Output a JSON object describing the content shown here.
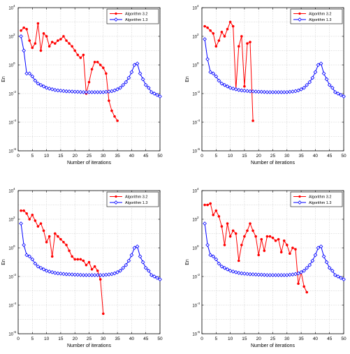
{
  "figure": {
    "xlabel": "Number of iterations",
    "ylabel": "En"
  },
  "legend_labels": [
    "Algorithm 3.2",
    "Algorithm 1.3"
  ],
  "colors": {
    "alg32": "#ff0000",
    "alg13": "#0000ff",
    "grid": "#b8b8b8",
    "axes": "#000000"
  },
  "chart_data": [
    {
      "type": "line",
      "xlabel": "Number of iterations",
      "ylabel": "En",
      "xlim": [
        0,
        50
      ],
      "ylim_log10": [
        -6,
        4
      ],
      "yscale": "log",
      "grid": true,
      "legend": "top-right",
      "x_ticks": [
        0,
        5,
        10,
        15,
        20,
        25,
        30,
        35,
        40,
        45,
        50
      ],
      "y_tick_exponents": [
        -6,
        -4,
        -2,
        0,
        2,
        4
      ],
      "series": [
        {
          "name": "Algorithm 3.2",
          "marker": "circle",
          "x": [
            1,
            2,
            3,
            4,
            5,
            6,
            7,
            8,
            9,
            10,
            11,
            12,
            13,
            14,
            15,
            16,
            17,
            18,
            19,
            20,
            21,
            22,
            23,
            24,
            25,
            26,
            27,
            28,
            29,
            30,
            31,
            32,
            33,
            34,
            35
          ],
          "log10_y": [
            2.4,
            2.6,
            2.5,
            1.7,
            1.2,
            1.5,
            2.9,
            1.0,
            2.2,
            2.0,
            1.3,
            1.6,
            1.5,
            1.7,
            1.8,
            2.0,
            1.7,
            1.5,
            1.3,
            1.0,
            0.7,
            0.5,
            0.7,
            -2.0,
            -1.2,
            -0.3,
            0.2,
            0.2,
            0.0,
            -0.2,
            -0.6,
            -2.5,
            -3.2,
            -3.6,
            -3.9
          ]
        },
        {
          "name": "Algorithm 1.3",
          "marker": "diamond",
          "x": [
            1,
            2,
            3,
            4,
            5,
            6,
            7,
            8,
            9,
            10,
            11,
            12,
            13,
            14,
            15,
            16,
            17,
            18,
            19,
            20,
            21,
            22,
            23,
            24,
            25,
            26,
            27,
            28,
            29,
            30,
            31,
            32,
            33,
            34,
            35,
            36,
            37,
            38,
            39,
            40,
            41,
            42,
            43,
            44,
            45,
            46,
            47,
            48,
            49,
            50
          ],
          "log10_y": [
            2.0,
            1.0,
            -0.6,
            -0.6,
            -0.8,
            -1.1,
            -1.3,
            -1.4,
            -1.5,
            -1.6,
            -1.65,
            -1.7,
            -1.75,
            -1.78,
            -1.8,
            -1.82,
            -1.84,
            -1.85,
            -1.86,
            -1.87,
            -1.88,
            -1.89,
            -1.9,
            -1.9,
            -1.9,
            -1.9,
            -1.9,
            -1.9,
            -1.9,
            -1.9,
            -1.88,
            -1.86,
            -1.83,
            -1.78,
            -1.7,
            -1.6,
            -1.4,
            -1.2,
            -0.9,
            -0.5,
            0.0,
            0.1,
            -0.6,
            -1.0,
            -1.4,
            -1.6,
            -1.9,
            -2.0,
            -2.1,
            -2.2
          ]
        }
      ]
    },
    {
      "type": "line",
      "xlabel": "Number of iterations",
      "ylabel": "En",
      "xlim": [
        0,
        50
      ],
      "ylim_log10": [
        -6,
        4
      ],
      "yscale": "log",
      "grid": true,
      "legend": "top-right",
      "x_ticks": [
        0,
        5,
        10,
        15,
        20,
        25,
        30,
        35,
        40,
        45,
        50
      ],
      "y_tick_exponents": [
        -6,
        -4,
        -2,
        0,
        2,
        4
      ],
      "series": [
        {
          "name": "Algorithm 3.2",
          "marker": "circle",
          "x": [
            1,
            2,
            3,
            4,
            5,
            6,
            7,
            8,
            9,
            10,
            11,
            12,
            13,
            14,
            15,
            16,
            17,
            18
          ],
          "log10_y": [
            2.7,
            2.6,
            2.4,
            2.2,
            1.3,
            1.7,
            2.3,
            2.0,
            2.5,
            3.0,
            2.7,
            -1.7,
            1.3,
            2.0,
            -1.5,
            1.5,
            1.6,
            -3.9
          ]
        },
        {
          "name": "Algorithm 1.3",
          "marker": "diamond",
          "x": [
            1,
            2,
            3,
            4,
            5,
            6,
            7,
            8,
            9,
            10,
            11,
            12,
            13,
            14,
            15,
            16,
            17,
            18,
            19,
            20,
            21,
            22,
            23,
            24,
            25,
            26,
            27,
            28,
            29,
            30,
            31,
            32,
            33,
            34,
            35,
            36,
            37,
            38,
            39,
            40,
            41,
            42,
            43,
            44,
            45,
            46,
            47,
            48,
            49,
            50
          ],
          "log10_y": [
            1.8,
            0.4,
            -0.5,
            -0.6,
            -0.8,
            -1.1,
            -1.3,
            -1.4,
            -1.5,
            -1.6,
            -1.65,
            -1.7,
            -1.75,
            -1.78,
            -1.8,
            -1.82,
            -1.84,
            -1.85,
            -1.86,
            -1.87,
            -1.88,
            -1.89,
            -1.9,
            -1.9,
            -1.9,
            -1.9,
            -1.9,
            -1.9,
            -1.9,
            -1.9,
            -1.88,
            -1.86,
            -1.83,
            -1.78,
            -1.7,
            -1.6,
            -1.4,
            -1.2,
            -0.9,
            -0.5,
            0.0,
            0.1,
            -0.6,
            -1.0,
            -1.4,
            -1.6,
            -1.9,
            -2.0,
            -2.1,
            -2.2
          ]
        }
      ]
    },
    {
      "type": "line",
      "xlabel": "Number of iterations",
      "ylabel": "En",
      "xlim": [
        0,
        50
      ],
      "ylim_log10": [
        -6,
        4
      ],
      "yscale": "log",
      "grid": true,
      "legend": "top-right",
      "x_ticks": [
        0,
        5,
        10,
        15,
        20,
        25,
        30,
        35,
        40,
        45,
        50
      ],
      "y_tick_exponents": [
        -6,
        -4,
        -2,
        0,
        2,
        4
      ],
      "series": [
        {
          "name": "Algorithm 3.2",
          "marker": "circle",
          "x": [
            1,
            2,
            3,
            4,
            5,
            6,
            7,
            8,
            9,
            10,
            11,
            12,
            13,
            14,
            15,
            16,
            17,
            18,
            19,
            20,
            21,
            22,
            23,
            24,
            25,
            26,
            27,
            28,
            29,
            30
          ],
          "log10_y": [
            2.6,
            2.6,
            2.4,
            2.0,
            2.3,
            1.9,
            1.5,
            1.7,
            1.2,
            0.4,
            0.8,
            -0.6,
            1.0,
            0.8,
            0.6,
            0.4,
            0.2,
            -0.2,
            -0.6,
            -0.8,
            -0.8,
            -0.8,
            -0.9,
            -1.2,
            -1.0,
            -1.5,
            -1.3,
            -1.6,
            -2.2,
            -4.6
          ]
        },
        {
          "name": "Algorithm 1.3",
          "marker": "diamond",
          "x": [
            1,
            2,
            3,
            4,
            5,
            6,
            7,
            8,
            9,
            10,
            11,
            12,
            13,
            14,
            15,
            16,
            17,
            18,
            19,
            20,
            21,
            22,
            23,
            24,
            25,
            26,
            27,
            28,
            29,
            30,
            31,
            32,
            33,
            34,
            35,
            36,
            37,
            38,
            39,
            40,
            41,
            42,
            43,
            44,
            45,
            46,
            47,
            48,
            49,
            50
          ],
          "log10_y": [
            1.7,
            0.2,
            -0.5,
            -0.6,
            -0.8,
            -1.1,
            -1.3,
            -1.4,
            -1.5,
            -1.6,
            -1.65,
            -1.7,
            -1.75,
            -1.78,
            -1.8,
            -1.82,
            -1.84,
            -1.85,
            -1.86,
            -1.87,
            -1.88,
            -1.89,
            -1.9,
            -1.9,
            -1.9,
            -1.9,
            -1.9,
            -1.9,
            -1.9,
            -1.9,
            -1.88,
            -1.86,
            -1.83,
            -1.78,
            -1.7,
            -1.6,
            -1.4,
            -1.2,
            -0.9,
            -0.5,
            0.0,
            0.1,
            -0.6,
            -1.0,
            -1.4,
            -1.6,
            -1.9,
            -2.0,
            -2.1,
            -2.2
          ]
        }
      ]
    },
    {
      "type": "line",
      "xlabel": "Number of iterations",
      "ylabel": "En",
      "xlim": [
        0,
        50
      ],
      "ylim_log10": [
        -6,
        4
      ],
      "yscale": "log",
      "grid": true,
      "legend": "top-right",
      "x_ticks": [
        0,
        5,
        10,
        15,
        20,
        25,
        30,
        35,
        40,
        45,
        50
      ],
      "y_tick_exponents": [
        -6,
        -4,
        -2,
        0,
        2,
        4
      ],
      "series": [
        {
          "name": "Algorithm 3.2",
          "marker": "circle",
          "x": [
            1,
            2,
            3,
            4,
            5,
            6,
            7,
            8,
            9,
            10,
            11,
            12,
            13,
            14,
            15,
            16,
            17,
            18,
            19,
            20,
            21,
            22,
            23,
            24,
            25,
            26,
            27,
            28,
            29,
            30,
            31,
            32,
            33,
            34,
            35,
            36,
            37
          ],
          "log10_y": [
            3.0,
            3.0,
            3.1,
            2.3,
            2.6,
            2.2,
            1.5,
            0.2,
            1.7,
            0.8,
            1.2,
            1.0,
            -0.9,
            0.2,
            0.8,
            1.2,
            1.7,
            1.2,
            0.8,
            -0.5,
            0.6,
            -0.2,
            0.8,
            0.8,
            0.7,
            0.5,
            0.6,
            -0.3,
            0.5,
            0.2,
            -0.4,
            0.0,
            -0.1,
            -2.5,
            -1.7,
            -2.7,
            -3.1
          ]
        },
        {
          "name": "Algorithm 1.3",
          "marker": "diamond",
          "x": [
            1,
            2,
            3,
            4,
            5,
            6,
            7,
            8,
            9,
            10,
            11,
            12,
            13,
            14,
            15,
            16,
            17,
            18,
            19,
            20,
            21,
            22,
            23,
            24,
            25,
            26,
            27,
            28,
            29,
            30,
            31,
            32,
            33,
            34,
            35,
            36,
            37,
            38,
            39,
            40,
            41,
            42,
            43,
            44,
            45,
            46,
            47,
            48,
            49,
            50
          ],
          "log10_y": [
            1.7,
            0.2,
            -0.5,
            -0.6,
            -0.8,
            -1.1,
            -1.3,
            -1.4,
            -1.5,
            -1.6,
            -1.65,
            -1.7,
            -1.75,
            -1.78,
            -1.8,
            -1.82,
            -1.84,
            -1.85,
            -1.86,
            -1.87,
            -1.88,
            -1.89,
            -1.9,
            -1.9,
            -1.9,
            -1.9,
            -1.9,
            -1.9,
            -1.9,
            -1.9,
            -1.88,
            -1.86,
            -1.83,
            -1.78,
            -1.7,
            -1.6,
            -1.4,
            -1.2,
            -0.9,
            -0.5,
            0.0,
            0.1,
            -0.6,
            -1.0,
            -1.4,
            -1.6,
            -1.9,
            -2.0,
            -2.1,
            -2.2
          ]
        }
      ]
    }
  ]
}
